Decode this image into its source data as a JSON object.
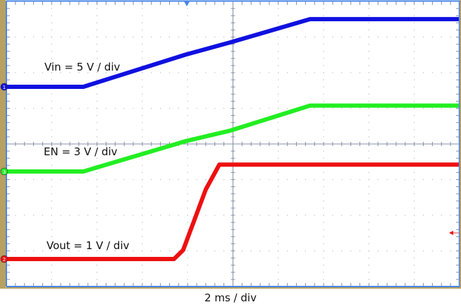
{
  "chart_data": {
    "type": "line",
    "title": "",
    "xlabel": "2 ms / div",
    "ylabel": "",
    "grid": true,
    "divisions": {
      "x": 10,
      "y": 8
    },
    "x_units": "ms",
    "x_per_div": 2,
    "xlim": [
      0,
      20
    ],
    "series": [
      {
        "name": "Vin",
        "channel": "1",
        "label": "Vin = 5 V / div",
        "color": "#1010e0",
        "volts_per_div": 5,
        "points_divs": [
          [
            0,
            0
          ],
          [
            1.7,
            0
          ],
          [
            3.95,
            0.9
          ],
          [
            4.95,
            1.25
          ],
          [
            6.7,
            1.9
          ],
          [
            10,
            1.9
          ]
        ]
      },
      {
        "name": "EN",
        "channel": "3",
        "label": "EN = 3 V / div",
        "color": "#22ee22",
        "volts_per_div": 3,
        "points_divs": [
          [
            0,
            0
          ],
          [
            1.7,
            0
          ],
          [
            3.95,
            0.85
          ],
          [
            4.95,
            1.15
          ],
          [
            6.7,
            1.85
          ],
          [
            10,
            1.85
          ]
        ]
      },
      {
        "name": "Vout",
        "channel": "2",
        "label": "Vout = 1 V / div",
        "color": "#ee1010",
        "volts_per_div": 1,
        "points_divs": [
          [
            0,
            0
          ],
          [
            3.7,
            0
          ],
          [
            3.9,
            0.25
          ],
          [
            4.4,
            1.95
          ],
          [
            4.7,
            2.65
          ],
          [
            10,
            2.65
          ]
        ]
      }
    ],
    "annotations": [
      "Vin = 5 V / div",
      "EN = 3 V / div",
      "Vout = 1 V / div",
      "2 ms / div"
    ]
  },
  "labels": {
    "vin": "Vin = 5 V / div",
    "en": "EN = 3 V / div",
    "vout": "Vout = 1 V / div",
    "timebase": "2 ms / div"
  },
  "markers": {
    "ch1": "1",
    "ch2": "2",
    "ch3": "3"
  },
  "colors": {
    "frame": "#b8a060",
    "border": "#4a86e8",
    "grid": "#b8bccc",
    "axis": "#8890a8",
    "vin": "#1010e0",
    "en": "#22ee22",
    "vout": "#ee1010"
  }
}
